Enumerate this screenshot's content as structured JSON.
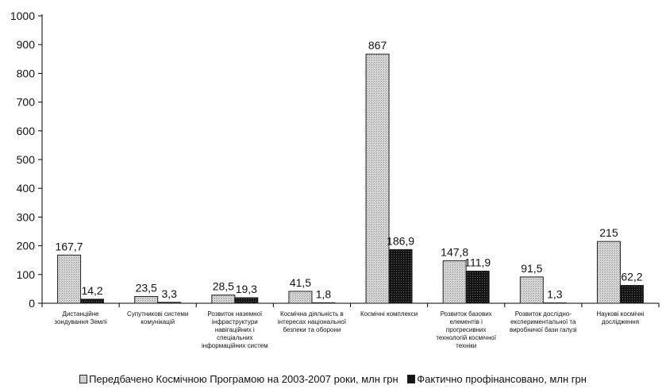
{
  "chart_data": {
    "type": "bar",
    "categories": [
      [
        "Дистанційне",
        "зондування Землі"
      ],
      [
        "Супутникові системи",
        "комунікацій"
      ],
      [
        "Розвиток наземної",
        "інфраструктури",
        "навігаційних і",
        "спеціальних",
        "інформаційних систем"
      ],
      [
        "Космічна діяльність в",
        "інтересах національної",
        "безпеки та оборони"
      ],
      [
        "Космічні комплекси"
      ],
      [
        "Розвиток базових",
        "елементів і",
        "прогресивних",
        "технологій космічної",
        "техніки"
      ],
      [
        "Розвиток дослідно-",
        "експериментальної та",
        "виробничої бази галузі"
      ],
      [
        "Наукові космічні",
        "дослідження"
      ]
    ],
    "series": [
      {
        "name": "Передбачено Космічною Програмою на 2003-2007 роки, млн грн",
        "values": [
          167.7,
          23.5,
          28.5,
          41.5,
          867,
          147.8,
          91.5,
          215
        ],
        "labels": [
          "167,7",
          "23,5",
          "28,5",
          "41,5",
          "867",
          "147,8",
          "91,5",
          "215"
        ],
        "color": "#cfcfcf"
      },
      {
        "name": "Фактично профінансовано, млн грн",
        "values": [
          14.2,
          3.3,
          19.3,
          1.8,
          186.9,
          111.9,
          1.3,
          62.2
        ],
        "labels": [
          "14,2",
          "3,3",
          "19,3",
          "1,8",
          "186,9",
          "111,9",
          "1,3",
          "62,2"
        ],
        "color": "#141414"
      }
    ],
    "ylim": [
      0,
      1000
    ],
    "yticks": [
      "0",
      "100",
      "200",
      "300",
      "400",
      "500",
      "600",
      "700",
      "800",
      "900",
      "1000"
    ],
    "grid": false,
    "legend_position": "bottom"
  }
}
